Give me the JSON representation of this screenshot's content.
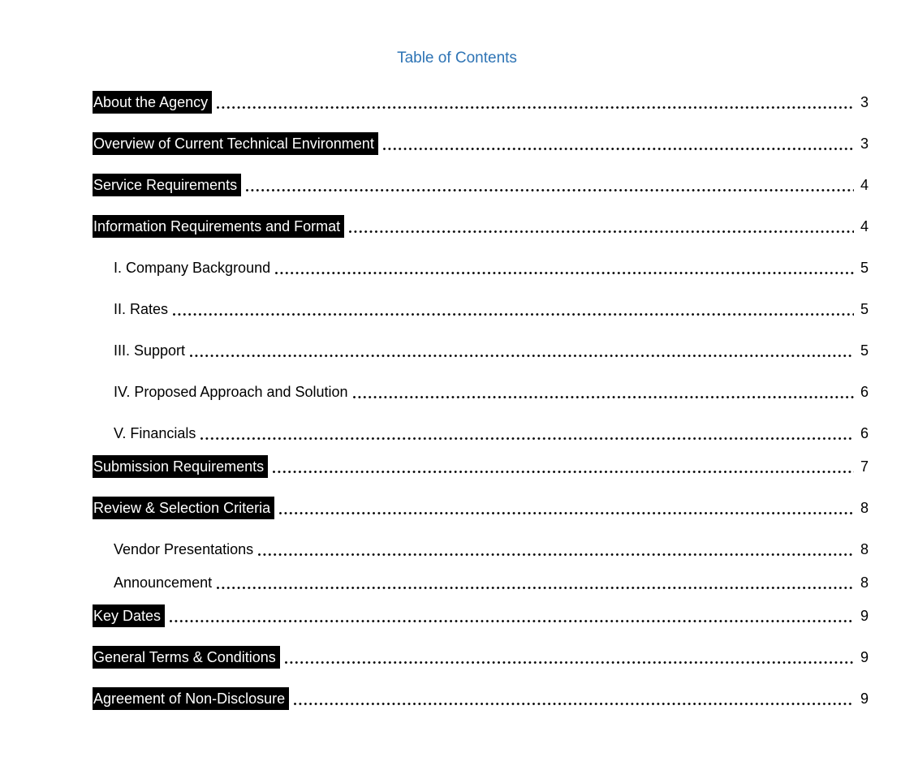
{
  "document": {
    "title": "Table of Contents"
  },
  "colors": {
    "title_blue": "#2E74B5",
    "highlight_bg": "#000000",
    "highlight_text": "#FFFFFF",
    "body_text": "#000000"
  },
  "toc": {
    "entries": [
      {
        "label": "About the Agency",
        "page": "3"
      },
      {
        "label": "Overview of Current Technical Environment",
        "page": "3"
      },
      {
        "label": "Service Requirements",
        "page": "4"
      },
      {
        "label": "Information Requirements and Format",
        "page": "4"
      },
      {
        "label": "I. Company Background",
        "page": "5"
      },
      {
        "label": "II. Rates",
        "page": "5"
      },
      {
        "label": "III. Support",
        "page": "5"
      },
      {
        "label": "IV. Proposed Approach and Solution",
        "page": "6"
      },
      {
        "label": "V. Financials",
        "page": "6"
      },
      {
        "label": "Submission Requirements",
        "page": "7"
      },
      {
        "label": "Review & Selection Criteria",
        "page": "8"
      },
      {
        "label": "Vendor Presentations",
        "page": "8"
      },
      {
        "label": "Announcement",
        "page": "8"
      },
      {
        "label": "Key Dates",
        "page": "9"
      },
      {
        "label": "General Terms & Conditions",
        "page": "9"
      },
      {
        "label": "Agreement of Non-Disclosure",
        "page": "9"
      }
    ]
  }
}
